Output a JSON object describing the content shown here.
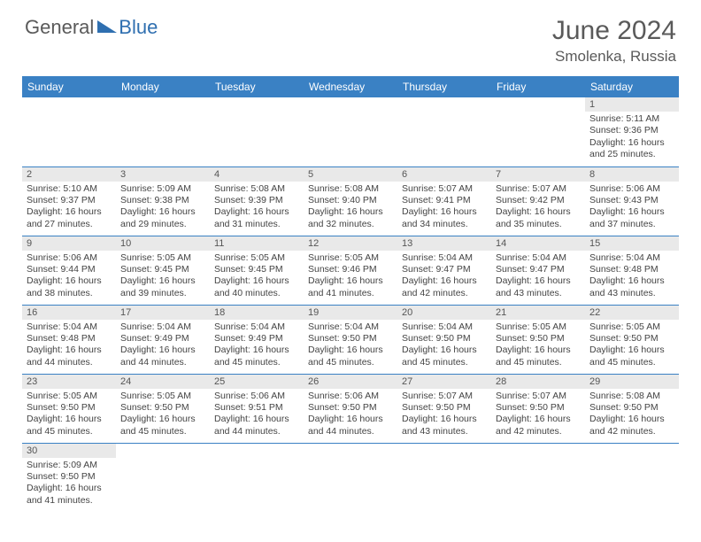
{
  "brand": {
    "part1": "General",
    "part2": "Blue"
  },
  "title": "June 2024",
  "location": "Smolenka, Russia",
  "colors": {
    "header_bg": "#3a81c4",
    "header_fg": "#ffffff",
    "daynum_bg": "#e9e9e9",
    "text": "#444444",
    "brand_gray": "#5a5a5a",
    "brand_blue": "#2f6fb0",
    "rule": "#3a81c4"
  },
  "typography": {
    "title_fontsize": 30,
    "location_fontsize": 17,
    "dayheader_fontsize": 12,
    "cell_fontsize": 10.5
  },
  "day_headers": [
    "Sunday",
    "Monday",
    "Tuesday",
    "Wednesday",
    "Thursday",
    "Friday",
    "Saturday"
  ],
  "weeks": [
    [
      null,
      null,
      null,
      null,
      null,
      null,
      {
        "n": "1",
        "sr": "5:11 AM",
        "ss": "9:36 PM",
        "dl": "16 hours and 25 minutes."
      }
    ],
    [
      {
        "n": "2",
        "sr": "5:10 AM",
        "ss": "9:37 PM",
        "dl": "16 hours and 27 minutes."
      },
      {
        "n": "3",
        "sr": "5:09 AM",
        "ss": "9:38 PM",
        "dl": "16 hours and 29 minutes."
      },
      {
        "n": "4",
        "sr": "5:08 AM",
        "ss": "9:39 PM",
        "dl": "16 hours and 31 minutes."
      },
      {
        "n": "5",
        "sr": "5:08 AM",
        "ss": "9:40 PM",
        "dl": "16 hours and 32 minutes."
      },
      {
        "n": "6",
        "sr": "5:07 AM",
        "ss": "9:41 PM",
        "dl": "16 hours and 34 minutes."
      },
      {
        "n": "7",
        "sr": "5:07 AM",
        "ss": "9:42 PM",
        "dl": "16 hours and 35 minutes."
      },
      {
        "n": "8",
        "sr": "5:06 AM",
        "ss": "9:43 PM",
        "dl": "16 hours and 37 minutes."
      }
    ],
    [
      {
        "n": "9",
        "sr": "5:06 AM",
        "ss": "9:44 PM",
        "dl": "16 hours and 38 minutes."
      },
      {
        "n": "10",
        "sr": "5:05 AM",
        "ss": "9:45 PM",
        "dl": "16 hours and 39 minutes."
      },
      {
        "n": "11",
        "sr": "5:05 AM",
        "ss": "9:45 PM",
        "dl": "16 hours and 40 minutes."
      },
      {
        "n": "12",
        "sr": "5:05 AM",
        "ss": "9:46 PM",
        "dl": "16 hours and 41 minutes."
      },
      {
        "n": "13",
        "sr": "5:04 AM",
        "ss": "9:47 PM",
        "dl": "16 hours and 42 minutes."
      },
      {
        "n": "14",
        "sr": "5:04 AM",
        "ss": "9:47 PM",
        "dl": "16 hours and 43 minutes."
      },
      {
        "n": "15",
        "sr": "5:04 AM",
        "ss": "9:48 PM",
        "dl": "16 hours and 43 minutes."
      }
    ],
    [
      {
        "n": "16",
        "sr": "5:04 AM",
        "ss": "9:48 PM",
        "dl": "16 hours and 44 minutes."
      },
      {
        "n": "17",
        "sr": "5:04 AM",
        "ss": "9:49 PM",
        "dl": "16 hours and 44 minutes."
      },
      {
        "n": "18",
        "sr": "5:04 AM",
        "ss": "9:49 PM",
        "dl": "16 hours and 45 minutes."
      },
      {
        "n": "19",
        "sr": "5:04 AM",
        "ss": "9:50 PM",
        "dl": "16 hours and 45 minutes."
      },
      {
        "n": "20",
        "sr": "5:04 AM",
        "ss": "9:50 PM",
        "dl": "16 hours and 45 minutes."
      },
      {
        "n": "21",
        "sr": "5:05 AM",
        "ss": "9:50 PM",
        "dl": "16 hours and 45 minutes."
      },
      {
        "n": "22",
        "sr": "5:05 AM",
        "ss": "9:50 PM",
        "dl": "16 hours and 45 minutes."
      }
    ],
    [
      {
        "n": "23",
        "sr": "5:05 AM",
        "ss": "9:50 PM",
        "dl": "16 hours and 45 minutes."
      },
      {
        "n": "24",
        "sr": "5:05 AM",
        "ss": "9:50 PM",
        "dl": "16 hours and 45 minutes."
      },
      {
        "n": "25",
        "sr": "5:06 AM",
        "ss": "9:51 PM",
        "dl": "16 hours and 44 minutes."
      },
      {
        "n": "26",
        "sr": "5:06 AM",
        "ss": "9:50 PM",
        "dl": "16 hours and 44 minutes."
      },
      {
        "n": "27",
        "sr": "5:07 AM",
        "ss": "9:50 PM",
        "dl": "16 hours and 43 minutes."
      },
      {
        "n": "28",
        "sr": "5:07 AM",
        "ss": "9:50 PM",
        "dl": "16 hours and 42 minutes."
      },
      {
        "n": "29",
        "sr": "5:08 AM",
        "ss": "9:50 PM",
        "dl": "16 hours and 42 minutes."
      }
    ],
    [
      {
        "n": "30",
        "sr": "5:09 AM",
        "ss": "9:50 PM",
        "dl": "16 hours and 41 minutes."
      },
      null,
      null,
      null,
      null,
      null,
      null
    ]
  ],
  "labels": {
    "sunrise": "Sunrise:",
    "sunset": "Sunset:",
    "daylight": "Daylight:"
  }
}
